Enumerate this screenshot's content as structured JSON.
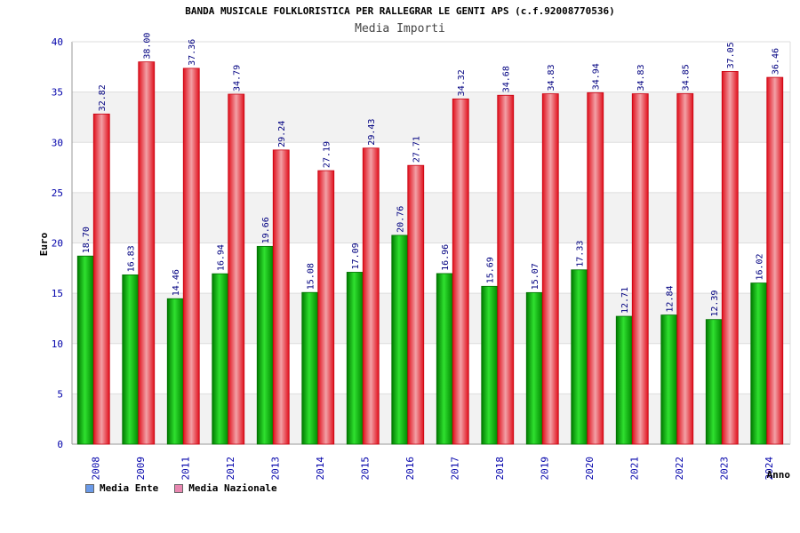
{
  "title": "BANDA MUSICALE FOLKLORISTICA PER RALLEGRAR LE GENTI APS (c.f.92008770536)",
  "subtitle": "Media Importi",
  "chart_data": {
    "type": "bar",
    "title": "BANDA MUSICALE FOLKLORISTICA PER RALLEGRAR LE GENTI APS (c.f.92008770536)",
    "subtitle": "Media Importi",
    "xlabel": "Anno",
    "ylabel": "Euro",
    "ylim": [
      0,
      40
    ],
    "yticks": [
      0,
      5,
      10,
      15,
      20,
      25,
      30,
      35,
      40
    ],
    "grid": true,
    "legend_position": "bottom-left",
    "categories": [
      "2008",
      "2009",
      "2011",
      "2012",
      "2013",
      "2014",
      "2015",
      "2016",
      "2017",
      "2018",
      "2019",
      "2020",
      "2021",
      "2022",
      "2023",
      "2024"
    ],
    "series": [
      {
        "name": "Media Ente",
        "color": "#00b000",
        "legend_color": "#6a9ae8",
        "values": [
          18.7,
          16.83,
          14.46,
          16.94,
          19.66,
          15.08,
          17.09,
          20.76,
          16.96,
          15.69,
          15.07,
          17.33,
          12.71,
          12.84,
          12.39,
          16.02
        ],
        "labels": [
          "18.70",
          "16.83",
          "14.46",
          "16.94",
          "19.66",
          "15.08",
          "17.09",
          "20.76",
          "16.96",
          "15.69",
          "15.07",
          "17.33",
          "12.71",
          "12.84",
          "12.39",
          "16.02"
        ]
      },
      {
        "name": "Media Nazionale",
        "color": "#e8202a",
        "legend_color": "#e887b0",
        "values": [
          32.82,
          38.0,
          37.36,
          34.79,
          29.24,
          27.19,
          29.43,
          27.71,
          34.32,
          34.68,
          34.83,
          34.94,
          34.83,
          34.85,
          37.05,
          36.46
        ],
        "labels": [
          "32.82",
          "38.00",
          "37.36",
          "34.79",
          "29.24",
          "27.19",
          "29.43",
          "27.71",
          "34.32",
          "34.68",
          "34.83",
          "34.94",
          "34.83",
          "34.85",
          "37.05",
          "36.46"
        ]
      }
    ]
  }
}
